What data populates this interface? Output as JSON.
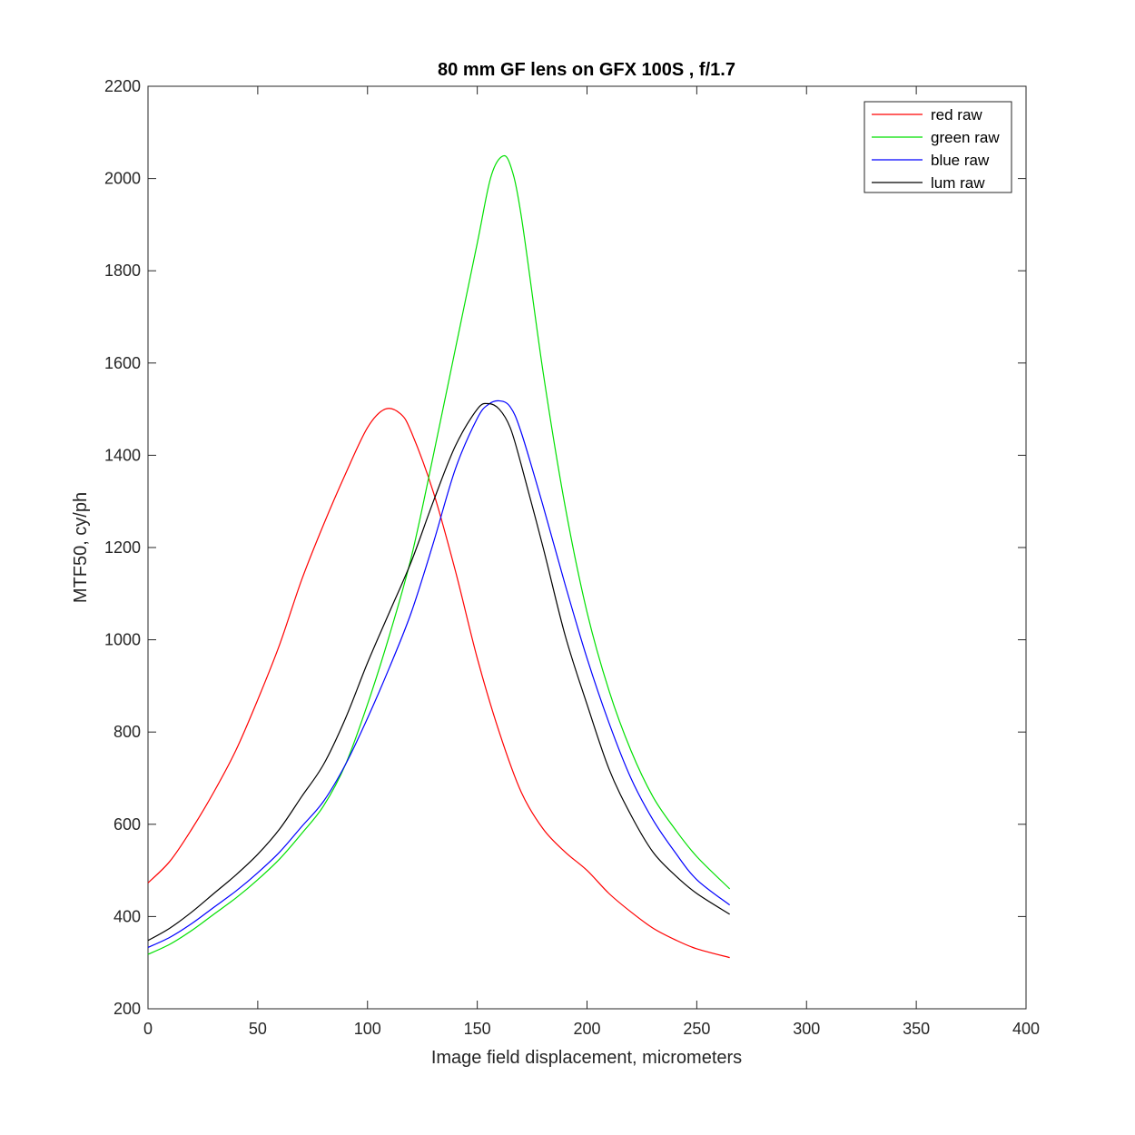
{
  "chart_data": {
    "type": "line",
    "title": "80 mm GF lens on GFX 100S , f/1.7",
    "xlabel": "Image field displacement, micrometers",
    "ylabel": "MTF50, cy/ph",
    "xlim": [
      0,
      400
    ],
    "ylim": [
      200,
      2200
    ],
    "xticks": [
      "0",
      "50",
      "100",
      "150",
      "200",
      "250",
      "300",
      "350",
      "400"
    ],
    "yticks": [
      "200",
      "400",
      "600",
      "800",
      "1000",
      "1200",
      "1400",
      "1600",
      "1800",
      "2000",
      "2200"
    ],
    "grid": false,
    "legend_position": "top-right",
    "series": [
      {
        "name": "red raw",
        "color": "#ff0000",
        "points": [
          [
            0,
            473
          ],
          [
            10,
            520
          ],
          [
            20,
            590
          ],
          [
            30,
            670
          ],
          [
            40,
            760
          ],
          [
            50,
            870
          ],
          [
            60,
            990
          ],
          [
            70,
            1130
          ],
          [
            80,
            1250
          ],
          [
            90,
            1360
          ],
          [
            100,
            1460
          ],
          [
            108,
            1500
          ],
          [
            115,
            1490
          ],
          [
            120,
            1450
          ],
          [
            130,
            1320
          ],
          [
            140,
            1150
          ],
          [
            150,
            960
          ],
          [
            160,
            800
          ],
          [
            170,
            670
          ],
          [
            180,
            590
          ],
          [
            190,
            540
          ],
          [
            200,
            500
          ],
          [
            210,
            450
          ],
          [
            220,
            410
          ],
          [
            230,
            375
          ],
          [
            240,
            350
          ],
          [
            250,
            330
          ],
          [
            265,
            311
          ]
        ]
      },
      {
        "name": "green raw",
        "color": "#00e000",
        "points": [
          [
            0,
            318
          ],
          [
            10,
            340
          ],
          [
            20,
            370
          ],
          [
            30,
            405
          ],
          [
            40,
            440
          ],
          [
            50,
            480
          ],
          [
            60,
            525
          ],
          [
            70,
            580
          ],
          [
            80,
            640
          ],
          [
            90,
            730
          ],
          [
            100,
            860
          ],
          [
            110,
            1010
          ],
          [
            120,
            1180
          ],
          [
            130,
            1400
          ],
          [
            140,
            1630
          ],
          [
            150,
            1860
          ],
          [
            156,
            2000
          ],
          [
            161,
            2047
          ],
          [
            165,
            2030
          ],
          [
            170,
            1920
          ],
          [
            180,
            1580
          ],
          [
            190,
            1290
          ],
          [
            200,
            1060
          ],
          [
            210,
            890
          ],
          [
            220,
            760
          ],
          [
            230,
            660
          ],
          [
            240,
            590
          ],
          [
            250,
            530
          ],
          [
            265,
            460
          ]
        ]
      },
      {
        "name": "blue raw",
        "color": "#0000ff",
        "points": [
          [
            0,
            333
          ],
          [
            10,
            355
          ],
          [
            20,
            385
          ],
          [
            30,
            420
          ],
          [
            40,
            455
          ],
          [
            50,
            495
          ],
          [
            60,
            540
          ],
          [
            70,
            595
          ],
          [
            80,
            650
          ],
          [
            90,
            730
          ],
          [
            100,
            830
          ],
          [
            110,
            940
          ],
          [
            120,
            1060
          ],
          [
            130,
            1210
          ],
          [
            140,
            1370
          ],
          [
            150,
            1480
          ],
          [
            155,
            1510
          ],
          [
            160,
            1518
          ],
          [
            165,
            1505
          ],
          [
            170,
            1450
          ],
          [
            180,
            1290
          ],
          [
            190,
            1120
          ],
          [
            200,
            960
          ],
          [
            210,
            820
          ],
          [
            220,
            700
          ],
          [
            230,
            610
          ],
          [
            240,
            540
          ],
          [
            250,
            480
          ],
          [
            265,
            425
          ]
        ]
      },
      {
        "name": "lum raw",
        "color": "#000000",
        "points": [
          [
            0,
            348
          ],
          [
            10,
            375
          ],
          [
            20,
            410
          ],
          [
            30,
            450
          ],
          [
            40,
            490
          ],
          [
            50,
            535
          ],
          [
            60,
            590
          ],
          [
            70,
            660
          ],
          [
            80,
            730
          ],
          [
            90,
            830
          ],
          [
            100,
            950
          ],
          [
            110,
            1060
          ],
          [
            120,
            1170
          ],
          [
            130,
            1300
          ],
          [
            140,
            1420
          ],
          [
            150,
            1500
          ],
          [
            155,
            1512
          ],
          [
            160,
            1500
          ],
          [
            165,
            1460
          ],
          [
            170,
            1380
          ],
          [
            180,
            1200
          ],
          [
            190,
            1010
          ],
          [
            200,
            860
          ],
          [
            210,
            720
          ],
          [
            220,
            620
          ],
          [
            230,
            540
          ],
          [
            240,
            490
          ],
          [
            250,
            450
          ],
          [
            265,
            405
          ]
        ]
      }
    ]
  }
}
